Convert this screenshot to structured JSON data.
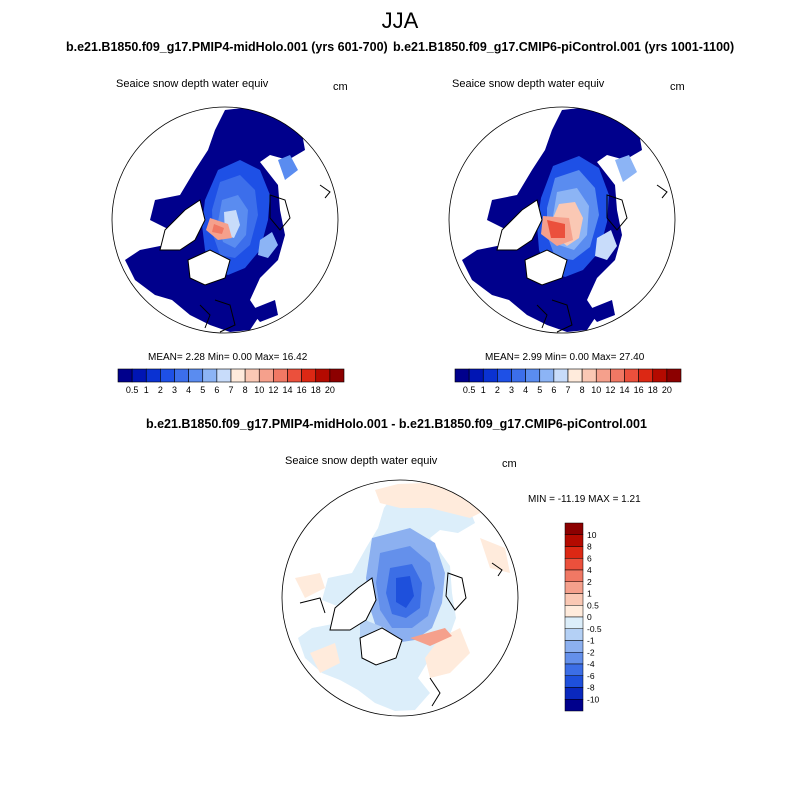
{
  "title": "JJA",
  "panels": [
    {
      "id": "midholo",
      "subtitle": "b.e21.B1850.f09_g17.PMIP4-midHolo.001 (yrs 601-700)",
      "variable": "Seaice snow depth water equiv",
      "units": "cm",
      "stats": {
        "mean": "2.28",
        "min": "0.00",
        "max": "16.42"
      },
      "stats_text": "MEAN=   2.28  Min=    0.00  Max=  16.42"
    },
    {
      "id": "picontrol",
      "subtitle": "b.e21.B1850.f09_g17.CMIP6-piControl.001 (yrs 1001-1100)",
      "variable": "Seaice snow depth water equiv",
      "units": "cm",
      "stats": {
        "mean": "2.99",
        "min": "0.00",
        "max": "27.40"
      },
      "stats_text": "MEAN=   2.99  Min=    0.00  Max=  27.40"
    }
  ],
  "abs_colorbar": {
    "labels": [
      "0.5",
      "1",
      "2",
      "3",
      "4",
      "5",
      "6",
      "7",
      "8",
      "10",
      "12",
      "14",
      "16",
      "18",
      "20"
    ],
    "colors": [
      "#00008c",
      "#0015b4",
      "#0a32d2",
      "#1e50e6",
      "#3c6eeb",
      "#5a8cf0",
      "#8cb4f5",
      "#c8dcfa",
      "#ffebdc",
      "#fac8b4",
      "#f5a08c",
      "#f07864",
      "#eb503c",
      "#dc2814",
      "#b40a00",
      "#8c0000"
    ]
  },
  "diff_panel": {
    "subtitle": "b.e21.B1850.f09_g17.PMIP4-midHolo.001 - b.e21.B1850.f09_g17.CMIP6-piControl.001",
    "variable": "Seaice snow depth water equiv",
    "units": "cm",
    "stats": {
      "min": "-11.19",
      "max": "1.21"
    },
    "stats_text": "MIN = -11.19 MAX =   1.21",
    "colorbar": {
      "labels": [
        "10",
        "8",
        "6",
        "4",
        "2",
        "1",
        "0.5",
        "0",
        "-0.5",
        "-1",
        "-2",
        "-4",
        "-6",
        "-8",
        "-10"
      ],
      "colors": [
        "#8c0000",
        "#b40a00",
        "#dc2814",
        "#eb503c",
        "#f07864",
        "#f5a08c",
        "#fac8b4",
        "#ffebdc",
        "#dceefa",
        "#b4d0f5",
        "#8cb0f0",
        "#6490eb",
        "#3c6ee6",
        "#1e50dc",
        "#0a28be",
        "#00008c"
      ]
    }
  }
}
